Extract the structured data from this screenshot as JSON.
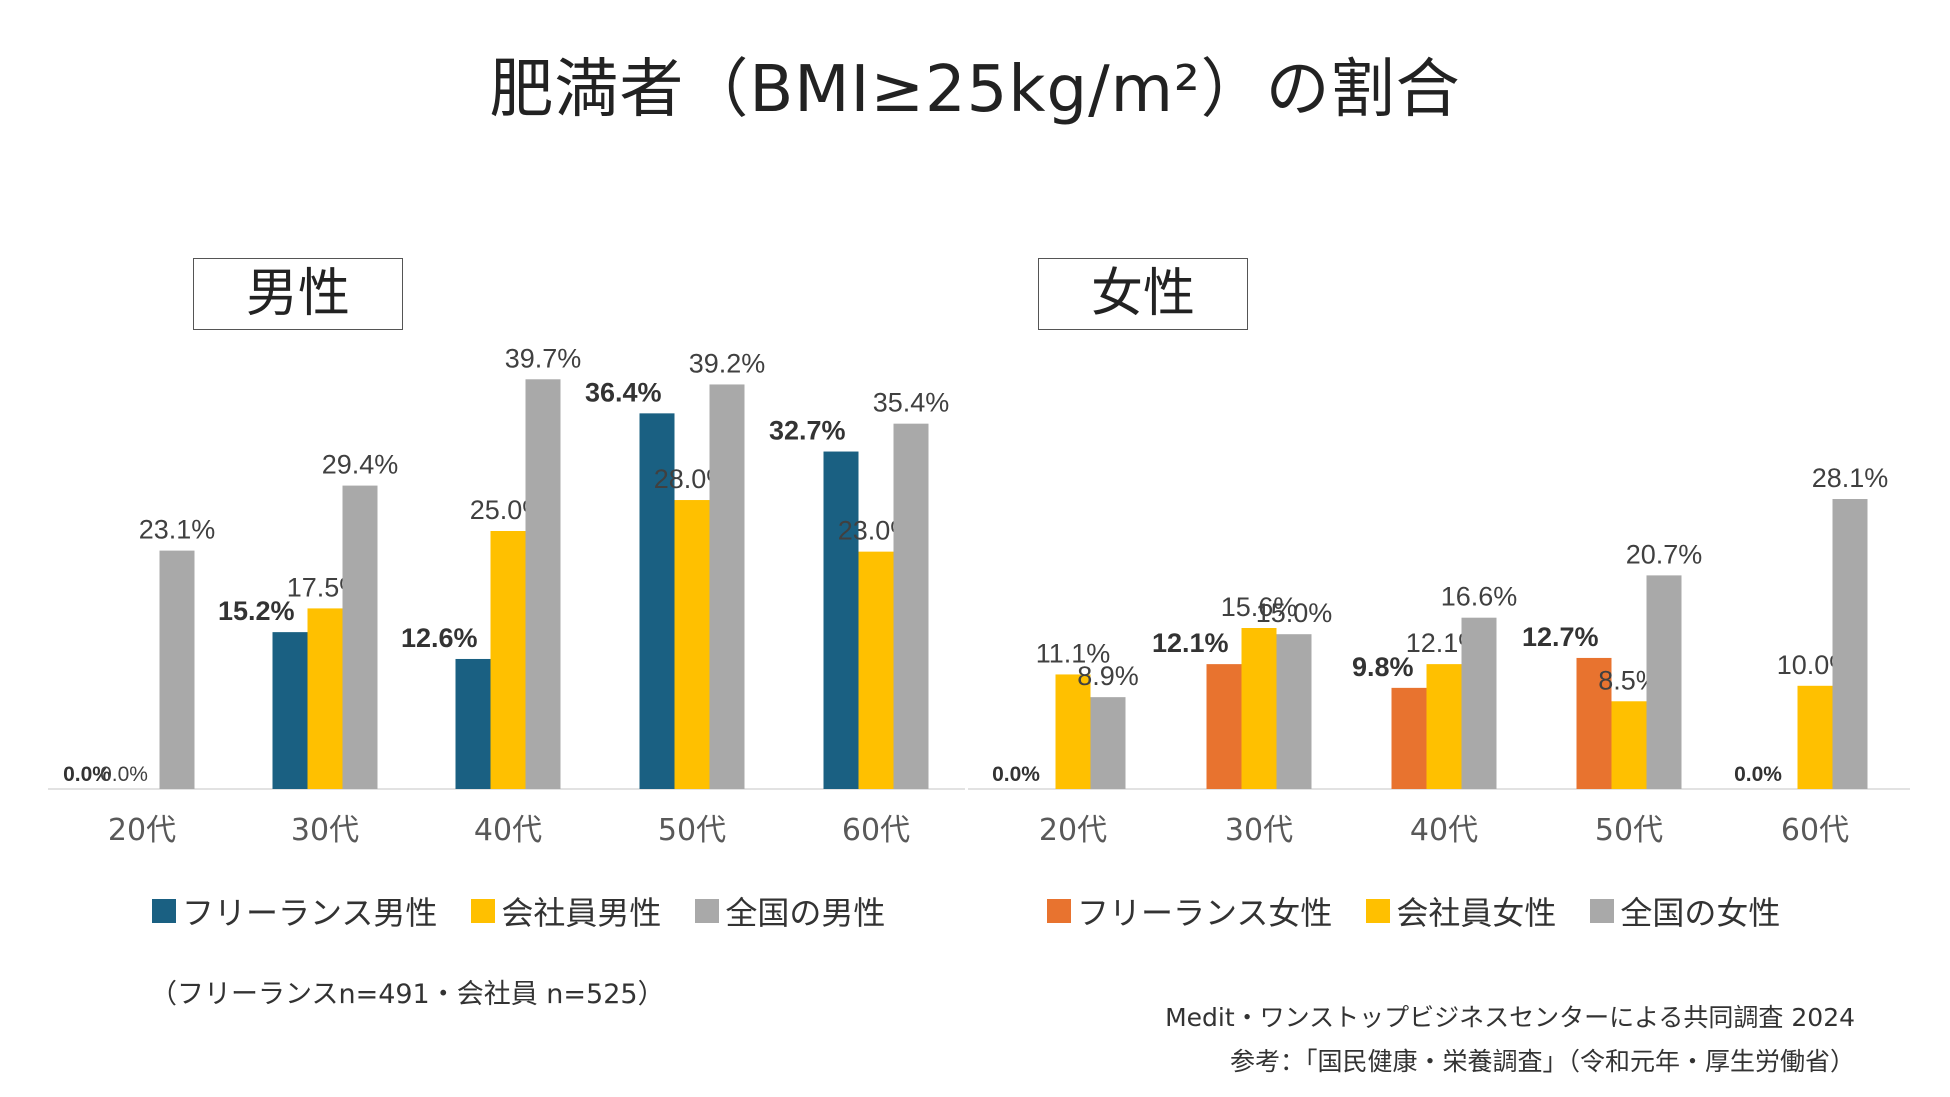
{
  "title": "肥満者（BMI≥25kg/m²）の割合",
  "colors": {
    "freelance_male": "#1a6082",
    "freelance_female": "#e8732f",
    "company": "#ffc000",
    "national": "#a9a9a9"
  },
  "chart_data": [
    {
      "type": "bar",
      "title": "男性",
      "categories": [
        "20代",
        "30代",
        "40代",
        "50代",
        "60代"
      ],
      "ylim": [
        0,
        42
      ],
      "series": [
        {
          "name": "フリーランス男性",
          "values": [
            0.0,
            15.2,
            12.6,
            36.4,
            32.7
          ],
          "labels": [
            "0.0%",
            "15.2%",
            "12.6%",
            "36.4%",
            "32.7%"
          ],
          "bold": true
        },
        {
          "name": "会社員男性",
          "values": [
            0.0,
            17.5,
            25.0,
            28.0,
            23.0
          ],
          "labels": [
            "0.0%",
            "17.5%",
            "25.0%",
            "28.0%",
            "23.0%"
          ],
          "bold": false
        },
        {
          "name": "全国の男性",
          "values": [
            23.1,
            29.4,
            39.7,
            39.2,
            35.4
          ],
          "labels": [
            "23.1%",
            "29.4%",
            "39.7%",
            "39.2%",
            "35.4%"
          ],
          "bold": false
        }
      ]
    },
    {
      "type": "bar",
      "title": "女性",
      "categories": [
        "20代",
        "30代",
        "40代",
        "50代",
        "60代"
      ],
      "ylim": [
        0,
        42
      ],
      "series": [
        {
          "name": "フリーランス女性",
          "values": [
            0.0,
            12.1,
            9.8,
            12.7,
            0.0
          ],
          "labels": [
            "0.0%",
            "12.1%",
            "9.8%",
            "12.7%",
            "0.0%"
          ],
          "bold": true
        },
        {
          "name": "会社員女性",
          "values": [
            11.1,
            15.6,
            12.1,
            8.5,
            10.0
          ],
          "labels": [
            "11.1%",
            "15.6%",
            "12.1%",
            "8.5%",
            "10.0%"
          ],
          "bold": false
        },
        {
          "name": "全国の女性",
          "values": [
            8.9,
            15.0,
            16.6,
            20.7,
            28.1
          ],
          "labels": [
            "8.9%",
            "15.0%",
            "16.6%",
            "20.7%",
            "28.1%"
          ],
          "bold": false
        }
      ]
    }
  ],
  "note": "（フリーランスn=491・会社員 n=525）",
  "credit_line1": "Medit・ワンストップビジネスセンターによる共同調査 2024",
  "credit_line2": "参考：「国民健康・栄養調査」（令和元年・厚生労働省）"
}
